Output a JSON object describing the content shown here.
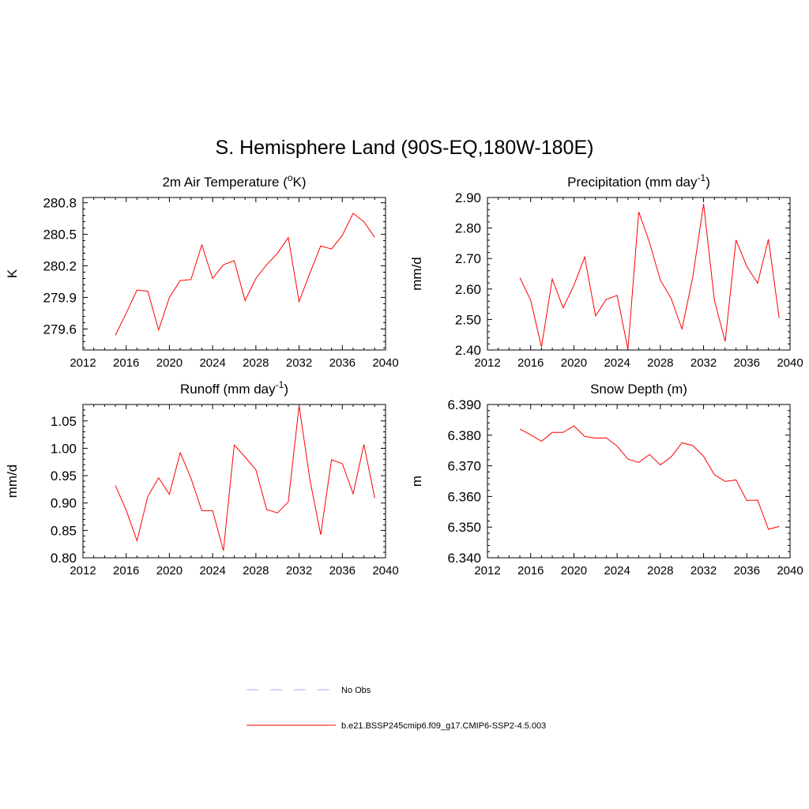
{
  "title": "S. Hemisphere Land (90S-EQ,180W-180E)",
  "chart_data": [
    {
      "type": "line",
      "title_main": "2m Air Temperature (",
      "title_sup_pre": "o",
      "title_mid": "K)",
      "title_sup_post": "",
      "title_tail": "",
      "ylabel": "K",
      "xlim": [
        2012,
        2040
      ],
      "xticks": [
        2012,
        2016,
        2020,
        2024,
        2028,
        2032,
        2036,
        2040
      ],
      "ylim": [
        279.4,
        280.85
      ],
      "yticks": [
        "279.6",
        "279.9",
        "280.2",
        "280.5",
        "280.8"
      ],
      "series": [
        {
          "color": "#ff0000",
          "x": [
            2015,
            2016,
            2017,
            2018,
            2019,
            2020,
            2021,
            2022,
            2023,
            2024,
            2025,
            2026,
            2027,
            2028,
            2029,
            2030,
            2031,
            2032,
            2033,
            2034,
            2035,
            2036,
            2037,
            2038,
            2039
          ],
          "y": [
            279.54,
            279.75,
            279.97,
            279.96,
            279.59,
            279.9,
            280.06,
            280.07,
            280.4,
            280.08,
            280.21,
            280.25,
            279.87,
            280.08,
            280.21,
            280.32,
            280.47,
            279.86,
            280.13,
            280.39,
            280.36,
            280.49,
            280.7,
            280.62,
            280.47
          ]
        }
      ]
    },
    {
      "type": "line",
      "title_main": "Precipitation (mm day",
      "title_sup_pre": "",
      "title_mid": "",
      "title_sup_post": "-1",
      "title_tail": ")",
      "ylabel": "mm/d",
      "xlim": [
        2012,
        2040
      ],
      "xticks": [
        2012,
        2016,
        2020,
        2024,
        2028,
        2032,
        2036,
        2040
      ],
      "ylim": [
        2.4,
        2.9
      ],
      "yticks": [
        "2.40",
        "2.50",
        "2.60",
        "2.70",
        "2.80",
        "2.90"
      ],
      "series": [
        {
          "color": "#ff0000",
          "x": [
            2015,
            2016,
            2017,
            2018,
            2019,
            2020,
            2021,
            2022,
            2023,
            2024,
            2025,
            2026,
            2027,
            2028,
            2029,
            2030,
            2031,
            2032,
            2033,
            2034,
            2035,
            2036,
            2037,
            2038,
            2039
          ],
          "y": [
            2.637,
            2.563,
            2.41,
            2.633,
            2.538,
            2.612,
            2.705,
            2.512,
            2.566,
            2.579,
            2.402,
            2.853,
            2.752,
            2.629,
            2.569,
            2.469,
            2.639,
            2.879,
            2.563,
            2.428,
            2.761,
            2.674,
            2.619,
            2.763,
            2.504
          ]
        }
      ]
    },
    {
      "type": "line",
      "title_main": "Runoff (mm day",
      "title_sup_pre": "",
      "title_mid": "",
      "title_sup_post": "-1",
      "title_tail": ")",
      "ylabel": "mm/d",
      "xlim": [
        2012,
        2040
      ],
      "xticks": [
        2012,
        2016,
        2020,
        2024,
        2028,
        2032,
        2036,
        2040
      ],
      "ylim": [
        0.8,
        1.08
      ],
      "yticks": [
        "0.80",
        "0.85",
        "0.90",
        "0.95",
        "1.00",
        "1.05"
      ],
      "series": [
        {
          "color": "#ff0000",
          "x": [
            2015,
            2016,
            2017,
            2018,
            2019,
            2020,
            2021,
            2022,
            2023,
            2024,
            2025,
            2026,
            2027,
            2028,
            2029,
            2030,
            2031,
            2032,
            2033,
            2034,
            2035,
            2036,
            2037,
            2038,
            2039
          ],
          "y": [
            0.932,
            0.887,
            0.831,
            0.912,
            0.946,
            0.916,
            0.992,
            0.945,
            0.886,
            0.886,
            0.813,
            1.006,
            0.984,
            0.961,
            0.888,
            0.882,
            0.902,
            1.078,
            0.943,
            0.842,
            0.979,
            0.972,
            0.917,
            1.007,
            0.909
          ]
        }
      ]
    },
    {
      "type": "line",
      "title_main": "Snow Depth (m)",
      "title_sup_pre": "",
      "title_mid": "",
      "title_sup_post": "",
      "title_tail": "",
      "ylabel": "m",
      "xlim": [
        2012,
        2040
      ],
      "xticks": [
        2012,
        2016,
        2020,
        2024,
        2028,
        2032,
        2036,
        2040
      ],
      "ylim": [
        6.34,
        6.39
      ],
      "yticks": [
        "6.340",
        "6.350",
        "6.360",
        "6.370",
        "6.380",
        "6.390"
      ],
      "series": [
        {
          "color": "#ff0000",
          "x": [
            2015,
            2016,
            2017,
            2018,
            2019,
            2020,
            2021,
            2022,
            2023,
            2024,
            2025,
            2026,
            2027,
            2028,
            2029,
            2030,
            2031,
            2032,
            2033,
            2034,
            2035,
            2036,
            2037,
            2038,
            2039
          ],
          "y": [
            6.382,
            6.3801,
            6.378,
            6.3809,
            6.3809,
            6.383,
            6.3796,
            6.379,
            6.3791,
            6.3764,
            6.3722,
            6.3711,
            6.3737,
            6.3703,
            6.3729,
            6.3775,
            6.3766,
            6.3731,
            6.3671,
            6.3649,
            6.3654,
            6.3587,
            6.3588,
            6.3493,
            6.3502
          ]
        }
      ]
    }
  ],
  "legend": {
    "items": [
      {
        "label": "No Obs",
        "color": "#aaaaff",
        "dash": "dashed"
      },
      {
        "label": "b.e21.BSSP245cmip6.f09_g17.CMIP6-SSP2-4.5.003",
        "color": "#ff0000",
        "dash": "solid"
      }
    ]
  }
}
